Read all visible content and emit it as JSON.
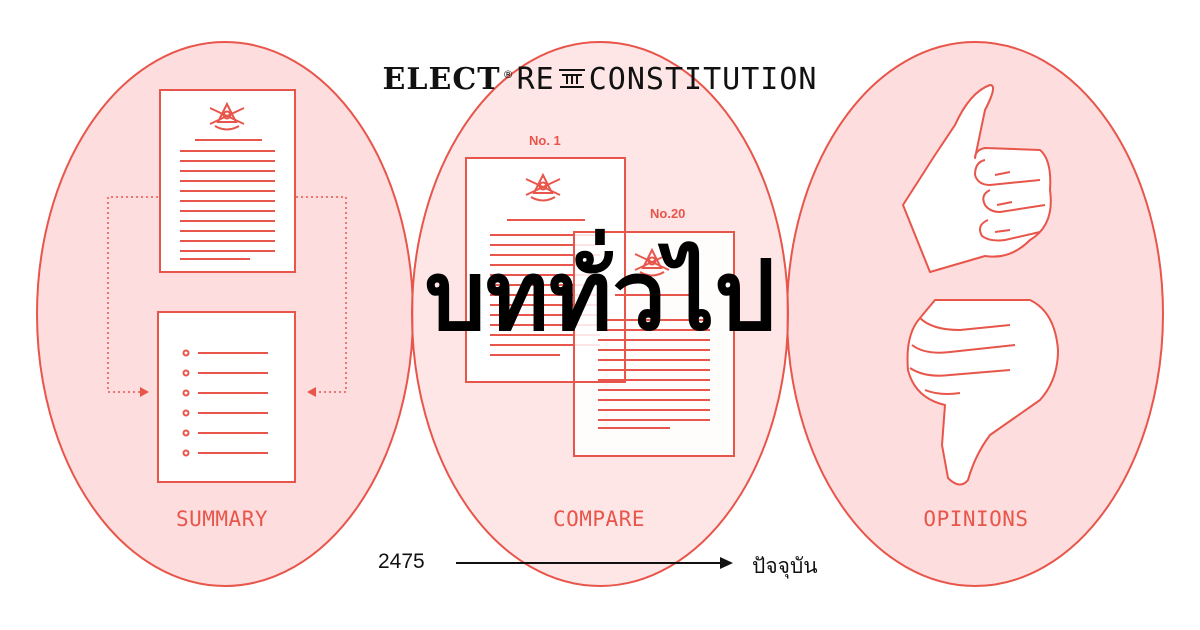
{
  "brand": {
    "elect": "ELECT",
    "registered": "®",
    "re": "RE",
    "constitution": "CONSTITUTION"
  },
  "headline": "บททั่วไป",
  "sections": {
    "summary": "SUMMARY",
    "compare": "COMPARE",
    "opinions": "OPINIONS"
  },
  "documents": {
    "first": "No. 1",
    "twentieth": "No.20"
  },
  "timeline": {
    "start": "2475",
    "end": "ปัจจุบัน"
  },
  "colors": {
    "accent": "#e8554a",
    "fill": "#fddddd",
    "text": "#111111"
  },
  "icons": [
    "emblem-icon",
    "thumbs-up-icon",
    "thumbs-down-icon",
    "arrow-right-icon"
  ]
}
